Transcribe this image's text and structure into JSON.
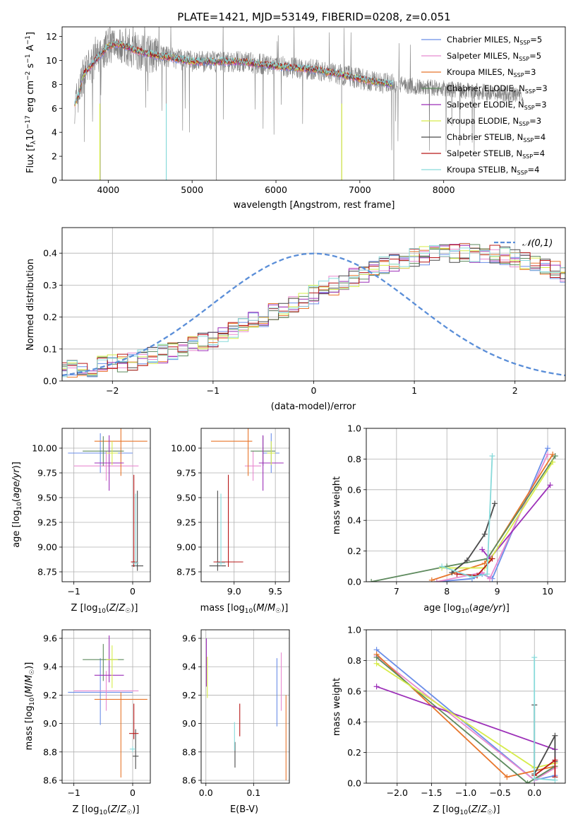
{
  "colors": {
    "c1": "#6b8ee8",
    "c2": "#e88ad0",
    "c3": "#e8762c",
    "c4": "#5e8a5e",
    "c5": "#9c2fb8",
    "c6": "#d6ec4a",
    "c7": "#4a4a4a",
    "c8": "#b81818",
    "c9": "#88dada",
    "gray": "#808080",
    "normal": "#4a86d8"
  },
  "chart_data": [
    {
      "type": "line",
      "title": "PLATE=1421, MJD=53149, FIBERID=0208, z=0.051",
      "xlabel": "wavelength [Angstrom, rest frame]",
      "ylabel": "Flux [fλ10⁻¹⁷ erg cm⁻² s⁻¹ A⁻¹]",
      "xlim": [
        3450,
        9450
      ],
      "ylim": [
        0,
        12.8
      ],
      "xticks": [
        "4000",
        "5000",
        "6000",
        "7000",
        "8000"
      ],
      "yticks": [
        "0",
        "2",
        "4",
        "6",
        "8",
        "10",
        "12"
      ],
      "legend": [
        "Chabrier MILES, N_SSP=5",
        "Salpeter MILES, N_SSP=5",
        "Kroupa MILES, N_SSP=3",
        "Chabrier ELODIE, N_SSP=3",
        "Salpeter ELODIE, N_SSP=3",
        "Kroupa ELODIE, N_SSP=3",
        "Chabrier STELIB, N_SSP=4",
        "Salpeter STELIB, N_SSP=4",
        "Kroupa STELIB, N_SSP=4"
      ],
      "legend_placement": "upper right",
      "spectrum_continuum": [
        [
          3600,
          6.3
        ],
        [
          3650,
          7.2
        ],
        [
          3700,
          8.8
        ],
        [
          3800,
          9.6
        ],
        [
          3900,
          10.4
        ],
        [
          4000,
          11.2
        ],
        [
          4100,
          11.4
        ],
        [
          4200,
          11.2
        ],
        [
          4300,
          10.9
        ],
        [
          4400,
          10.7
        ],
        [
          4500,
          10.5
        ],
        [
          4700,
          10.3
        ],
        [
          5000,
          9.9
        ],
        [
          5300,
          9.9
        ],
        [
          5600,
          9.9
        ],
        [
          5900,
          9.6
        ],
        [
          6200,
          9.4
        ],
        [
          6500,
          9.2
        ],
        [
          6800,
          8.8
        ],
        [
          7100,
          8.3
        ],
        [
          7400,
          8.0
        ]
      ],
      "grid": false
    },
    {
      "type": "line",
      "xlabel": "(data-model)/error",
      "ylabel": "Normed distribution",
      "xlim": [
        -2.5,
        2.5
      ],
      "ylim": [
        0,
        0.48
      ],
      "xticks": [
        "−2",
        "−1",
        "0",
        "1",
        "2"
      ],
      "yticks": [
        "0.0",
        "0.1",
        "0.2",
        "0.3",
        "0.4"
      ],
      "legend": [
        "𝒩(0,1)"
      ],
      "legend_placement": "upper right",
      "hist_bin_width": 0.1,
      "hist_base": [
        0.035,
        0.037,
        0.04,
        0.043,
        0.048,
        0.052,
        0.057,
        0.063,
        0.07,
        0.078,
        0.086,
        0.094,
        0.104,
        0.114,
        0.124,
        0.136,
        0.148,
        0.16,
        0.172,
        0.186,
        0.2,
        0.213,
        0.227,
        0.241,
        0.256,
        0.27,
        0.284,
        0.298,
        0.312,
        0.325,
        0.338,
        0.35,
        0.36,
        0.37,
        0.378,
        0.386,
        0.392,
        0.396,
        0.399,
        0.4,
        0.401,
        0.4,
        0.398,
        0.395,
        0.39,
        0.384,
        0.376,
        0.368,
        0.358,
        0.348,
        0.336,
        0.324,
        0.311,
        0.298,
        0.284,
        0.27,
        0.256,
        0.242,
        0.227,
        0.213,
        0.2,
        0.186,
        0.172,
        0.16,
        0.148,
        0.136,
        0.124,
        0.114,
        0.104,
        0.094,
        0.085,
        0.077,
        0.069,
        0.062,
        0.056,
        0.05,
        0.045,
        0.04,
        0.036,
        0.032
      ],
      "grid": true
    },
    {
      "type": "scatter",
      "xlabel": "Z [log₁₀(Z/Z☉)]",
      "ylabel": "age  [log₁₀(age/yr)]",
      "xlim": [
        -1.2,
        0.3
      ],
      "ylim": [
        8.65,
        10.2
      ],
      "xticks": [
        "−1",
        "0"
      ],
      "yticks": [
        "8.75",
        "9.00",
        "9.25",
        "9.50",
        "9.75",
        "10.00"
      ],
      "points": [
        {
          "x": -0.55,
          "y": 9.95,
          "xerr": [
            0.55,
            0.55
          ],
          "yerr": [
            0.2,
            0.2
          ],
          "color": "c1"
        },
        {
          "x": -0.45,
          "y": 9.82,
          "xerr": [
            0.55,
            0.55
          ],
          "yerr": [
            0.15,
            0.15
          ],
          "color": "c2"
        },
        {
          "x": -0.2,
          "y": 10.07,
          "xerr": [
            0.45,
            0.45
          ],
          "yerr": [
            0.35,
            1.35
          ],
          "color": "c3"
        },
        {
          "x": -0.5,
          "y": 9.97,
          "xerr": [
            0.35,
            0.35
          ],
          "yerr": [
            0.15,
            0.15
          ],
          "color": "c4"
        },
        {
          "x": -0.4,
          "y": 9.85,
          "xerr": [
            0.25,
            0.25
          ],
          "yerr": [
            0.28,
            0.28
          ],
          "color": "c5"
        },
        {
          "x": -0.35,
          "y": 9.95,
          "xerr": [
            0.1,
            0.1
          ],
          "yerr": [
            0.12,
            0.12
          ],
          "color": "c6"
        },
        {
          "x": 0.08,
          "y": 8.81,
          "xerr": [
            0.1,
            0.1
          ],
          "yerr": [
            0.05,
            0.76
          ],
          "color": "c7"
        },
        {
          "x": 0.02,
          "y": 8.85,
          "xerr": [
            0.05,
            0.05
          ],
          "yerr": [
            0.05,
            0.88
          ],
          "color": "c8"
        },
        {
          "x": 0.05,
          "y": 8.84,
          "xerr": [
            0.05,
            0.05
          ],
          "yerr": [
            0.03,
            0.7
          ],
          "color": "c9"
        }
      ],
      "grid": true
    },
    {
      "type": "scatter",
      "xlabel": "mass [log₁₀(M/M☉)]",
      "ylabel": "",
      "xlim": [
        8.6,
        9.67
      ],
      "ylim": [
        8.65,
        10.2
      ],
      "xticks": [
        "9.0",
        "9.5"
      ],
      "yticks": [
        "8.75",
        "9.00",
        "9.25",
        "9.50",
        "9.75",
        "10.00"
      ],
      "points": [
        {
          "x": 9.45,
          "y": 9.95,
          "xerr": [
            0.1,
            0.1
          ],
          "yerr": [
            0.2,
            0.2
          ],
          "color": "c1"
        },
        {
          "x": 9.23,
          "y": 9.82,
          "xerr": [
            0.1,
            0.1
          ],
          "yerr": [
            0.15,
            0.15
          ],
          "color": "c2"
        },
        {
          "x": 9.17,
          "y": 10.07,
          "xerr": [
            0.45,
            0.05
          ],
          "yerr": [
            0.35,
            1.35
          ],
          "color": "c3"
        },
        {
          "x": 9.35,
          "y": 9.97,
          "xerr": [
            0.15,
            0.15
          ],
          "yerr": [
            0.15,
            0.15
          ],
          "color": "c4"
        },
        {
          "x": 9.35,
          "y": 9.85,
          "xerr": [
            0.05,
            0.25
          ],
          "yerr": [
            0.28,
            0.28
          ],
          "color": "c5"
        },
        {
          "x": 9.45,
          "y": 9.95,
          "xerr": [
            0.05,
            0.05
          ],
          "yerr": [
            0.12,
            0.12
          ],
          "color": "c6"
        },
        {
          "x": 8.8,
          "y": 8.81,
          "xerr": [
            0.1,
            0.1
          ],
          "yerr": [
            0.05,
            0.76
          ],
          "color": "c7"
        },
        {
          "x": 8.93,
          "y": 8.85,
          "xerr": [
            0.18,
            0.18
          ],
          "yerr": [
            0.05,
            0.88
          ],
          "color": "c8"
        },
        {
          "x": 8.84,
          "y": 8.84,
          "xerr": [
            0.05,
            0.05
          ],
          "yerr": [
            0.03,
            0.7
          ],
          "color": "c9"
        }
      ],
      "grid": true
    },
    {
      "type": "line",
      "xlabel": "age  [log₁₀(age/yr)]",
      "ylabel": "mass weight",
      "xlim": [
        6.4,
        10.35
      ],
      "ylim": [
        0,
        1.0
      ],
      "xticks": [
        "7",
        "8",
        "9",
        "10"
      ],
      "yticks": [
        "0.0",
        "0.2",
        "0.4",
        "0.6",
        "0.8",
        "1.0"
      ],
      "series": [
        {
          "color": "c1",
          "points": [
            [
              7.8,
              0.0
            ],
            [
              8.5,
              0.02
            ],
            [
              8.7,
              0.05
            ],
            [
              8.9,
              0.02
            ],
            [
              10.0,
              0.87
            ]
          ]
        },
        {
          "color": "c2",
          "points": [
            [
              7.8,
              0.0
            ],
            [
              8.7,
              0.06
            ],
            [
              8.85,
              0.02
            ],
            [
              10.0,
              0.83
            ]
          ]
        },
        {
          "color": "c3",
          "points": [
            [
              7.7,
              0.01
            ],
            [
              8.75,
              0.12
            ],
            [
              10.1,
              0.83
            ]
          ]
        },
        {
          "color": "c4",
          "points": [
            [
              6.5,
              0.0
            ],
            [
              8.0,
              0.1
            ],
            [
              8.8,
              0.15
            ],
            [
              10.15,
              0.82
            ]
          ]
        },
        {
          "color": "c5",
          "points": [
            [
              8.7,
              0.21
            ],
            [
              8.85,
              0.15
            ],
            [
              10.05,
              0.63
            ]
          ]
        },
        {
          "color": "c6",
          "points": [
            [
              7.9,
              0.09
            ],
            [
              8.75,
              0.09
            ],
            [
              10.1,
              0.78
            ]
          ]
        },
        {
          "color": "c7",
          "points": [
            [
              8.1,
              0.06
            ],
            [
              8.4,
              0.14
            ],
            [
              8.75,
              0.31
            ],
            [
              8.95,
              0.51
            ]
          ]
        },
        {
          "color": "c8",
          "points": [
            [
              8.2,
              0.05
            ],
            [
              8.6,
              0.04
            ],
            [
              8.9,
              0.15
            ]
          ]
        },
        {
          "color": "c9",
          "points": [
            [
              7.9,
              0.1
            ],
            [
              8.5,
              0.03
            ],
            [
              8.8,
              0.05
            ],
            [
              8.9,
              0.82
            ]
          ]
        }
      ],
      "grid": true
    },
    {
      "type": "scatter",
      "xlabel": "Z [log₁₀(Z/Z☉)]",
      "ylabel": "mass [log₁₀(M/M☉)]",
      "xlim": [
        -1.2,
        0.3
      ],
      "ylim": [
        8.58,
        9.66
      ],
      "xticks": [
        "−1",
        "0"
      ],
      "yticks": [
        "8.6",
        "8.8",
        "9.0",
        "9.2",
        "9.4",
        "9.6"
      ],
      "points": [
        {
          "x": -0.55,
          "y": 9.22,
          "xerr": [
            0.55,
            0.55
          ],
          "yerr": [
            0.23,
            0.24
          ],
          "color": "c1"
        },
        {
          "x": -0.45,
          "y": 9.23,
          "xerr": [
            0.55,
            0.55
          ],
          "yerr": [
            0.14,
            0.14
          ],
          "color": "c2"
        },
        {
          "x": -0.2,
          "y": 9.17,
          "xerr": [
            0.45,
            0.45
          ],
          "yerr": [
            0.55,
            0.05
          ],
          "color": "c3"
        },
        {
          "x": -0.5,
          "y": 9.45,
          "xerr": [
            0.35,
            0.35
          ],
          "yerr": [
            0.15,
            0.11
          ],
          "color": "c4"
        },
        {
          "x": -0.4,
          "y": 9.34,
          "xerr": [
            0.25,
            0.25
          ],
          "yerr": [
            0.05,
            0.28
          ],
          "color": "c5"
        },
        {
          "x": -0.35,
          "y": 9.45,
          "xerr": [
            0.1,
            0.1
          ],
          "yerr": [
            0.2,
            0.1
          ],
          "color": "c6"
        },
        {
          "x": 0.05,
          "y": 8.77,
          "xerr": [
            0.05,
            0.05
          ],
          "yerr": [
            0.09,
            0.19
          ],
          "color": "c7"
        },
        {
          "x": 0.02,
          "y": 8.93,
          "xerr": [
            0.08,
            0.08
          ],
          "yerr": [
            0.04,
            0.21
          ],
          "color": "c8"
        },
        {
          "x": 0.0,
          "y": 8.82,
          "xerr": [
            0.05,
            0.05
          ],
          "yerr": [
            0.02,
            0.02
          ],
          "color": "c9"
        }
      ],
      "grid": true
    },
    {
      "type": "scatter",
      "xlabel": "E(B-V)",
      "ylabel": "",
      "xlim": [
        -0.01,
        0.175
      ],
      "ylim": [
        8.58,
        9.66
      ],
      "xticks": [
        "0.0",
        "0.1"
      ],
      "yticks": [
        "8.6",
        "8.8",
        "9.0",
        "9.2",
        "9.4",
        "9.6"
      ],
      "points": [
        {
          "x": 0.149,
          "y": 9.22,
          "yerr": [
            0.24,
            0.24
          ],
          "color": "c1"
        },
        {
          "x": 0.158,
          "y": 9.23,
          "yerr": [
            0.14,
            0.27
          ],
          "color": "c2"
        },
        {
          "x": 0.168,
          "y": 8.9,
          "yerr": [
            0.3,
            0.3
          ],
          "color": "c3"
        },
        {
          "x": 0.001,
          "y": 9.36,
          "yerr": [
            0.1,
            0.24
          ],
          "color": "c5"
        },
        {
          "x": 0.003,
          "y": 9.34,
          "yerr": [
            0.16,
            0.13
          ],
          "color": "c6"
        },
        {
          "x": 0.061,
          "y": 8.82,
          "yerr": [
            0.13,
            0.05
          ],
          "color": "c7"
        },
        {
          "x": 0.071,
          "y": 9.02,
          "yerr": [
            0.11,
            0.12
          ],
          "color": "c8"
        },
        {
          "x": 0.06,
          "y": 8.88,
          "yerr": [
            0.07,
            0.13
          ],
          "color": "c9"
        }
      ],
      "grid": true
    },
    {
      "type": "line",
      "xlabel": "Z [log₁₀(Z/Z☉)]",
      "ylabel": "mass weight",
      "xlim": [
        -2.45,
        0.45
      ],
      "ylim": [
        0,
        1.0
      ],
      "xticks": [
        "−2.0",
        "−1.5",
        "−1.0",
        "−0.5",
        "0.0"
      ],
      "yticks": [
        "0.0",
        "0.2",
        "0.4",
        "0.6",
        "0.8",
        "1.0"
      ],
      "series": [
        {
          "color": "c1",
          "points": [
            [
              -2.3,
              0.87
            ],
            [
              0.0,
              0.02
            ],
            [
              0.3,
              0.05
            ]
          ]
        },
        {
          "color": "c2",
          "points": [
            [
              -2.3,
              0.83
            ],
            [
              0.0,
              0.02
            ],
            [
              0.3,
              0.1
            ]
          ]
        },
        {
          "color": "c3",
          "points": [
            [
              -2.3,
              0.84
            ],
            [
              -0.4,
              0.04
            ],
            [
              0.3,
              0.11
            ]
          ]
        },
        {
          "color": "c4",
          "points": [
            [
              -2.3,
              0.82
            ],
            [
              -0.1,
              0.0
            ],
            [
              0.3,
              0.11
            ]
          ]
        },
        {
          "color": "c5",
          "points": [
            [
              -2.3,
              0.63
            ],
            [
              0.3,
              0.22
            ],
            [
              0.3,
              0.15
            ]
          ]
        },
        {
          "color": "c6",
          "points": [
            [
              -2.3,
              0.78
            ],
            [
              0.0,
              0.1
            ],
            [
              0.3,
              0.13
            ]
          ]
        },
        {
          "color": "c7",
          "points": [
            [
              0.0,
              0.51
            ],
            [
              0.0,
              0.06
            ],
            [
              0.3,
              0.31
            ],
            [
              0.3,
              0.14
            ]
          ]
        },
        {
          "color": "c8",
          "points": [
            [
              0.0,
              0.05
            ],
            [
              0.3,
              0.15
            ],
            [
              0.3,
              0.04
            ]
          ]
        },
        {
          "color": "c9",
          "points": [
            [
              0.0,
              0.82
            ],
            [
              0.0,
              0.03
            ],
            [
              0.3,
              0.02
            ]
          ]
        }
      ],
      "grid": true
    }
  ]
}
